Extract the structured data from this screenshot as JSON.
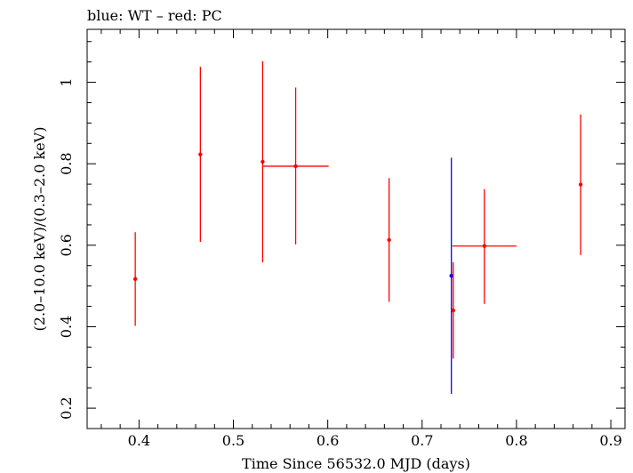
{
  "chart_data": {
    "type": "scatter",
    "title": "blue: WT – red: PC",
    "xlabel": "Time Since 56532.0 MJD (days)",
    "ylabel": "(2.0–10.0 keV)/(0.3–2.0 keV)",
    "xlim": [
      0.345,
      0.915
    ],
    "ylim": [
      0.15,
      1.13
    ],
    "xticks": [
      0.4,
      0.5,
      0.6,
      0.7,
      0.8,
      0.9
    ],
    "xtick_labels": [
      "0.4",
      "0.5",
      "0.6",
      "0.7",
      "0.8",
      "0.9"
    ],
    "yticks": [
      0.2,
      0.4,
      0.6,
      0.8,
      1.0
    ],
    "ytick_labels": [
      "0.2",
      "0.4",
      "0.6",
      "0.8",
      "1"
    ],
    "grid": false,
    "series": [
      {
        "name": "WT",
        "color": "#0000ff",
        "points": [
          {
            "x": 0.731,
            "y": 0.525,
            "xerr_lo": 0.0,
            "xerr_hi": 0.0,
            "ylo": 0.235,
            "yhi": 0.815
          }
        ]
      },
      {
        "name": "PC",
        "color": "#ff0000",
        "points": [
          {
            "x": 0.396,
            "y": 0.517,
            "xerr_lo": 0.0,
            "xerr_hi": 0.0,
            "ylo": 0.402,
            "yhi": 0.632
          },
          {
            "x": 0.465,
            "y": 0.823,
            "xerr_lo": 0.0,
            "xerr_hi": 0.0,
            "ylo": 0.608,
            "yhi": 1.038
          },
          {
            "x": 0.531,
            "y": 0.805,
            "xerr_lo": 0.0,
            "xerr_hi": 0.0,
            "ylo": 0.558,
            "yhi": 1.052
          },
          {
            "x": 0.566,
            "y": 0.794,
            "xerr_lo": 0.035,
            "xerr_hi": 0.035,
            "ylo": 0.602,
            "yhi": 0.987
          },
          {
            "x": 0.665,
            "y": 0.613,
            "xerr_lo": 0.0,
            "xerr_hi": 0.0,
            "ylo": 0.461,
            "yhi": 0.765
          },
          {
            "x": 0.733,
            "y": 0.44,
            "xerr_lo": 0.0,
            "xerr_hi": 0.0,
            "ylo": 0.322,
            "yhi": 0.558
          },
          {
            "x": 0.766,
            "y": 0.598,
            "xerr_lo": 0.034,
            "xerr_hi": 0.034,
            "ylo": 0.456,
            "yhi": 0.738
          },
          {
            "x": 0.868,
            "y": 0.749,
            "xerr_lo": 0.0,
            "xerr_hi": 0.0,
            "ylo": 0.576,
            "yhi": 0.921
          }
        ]
      }
    ]
  }
}
